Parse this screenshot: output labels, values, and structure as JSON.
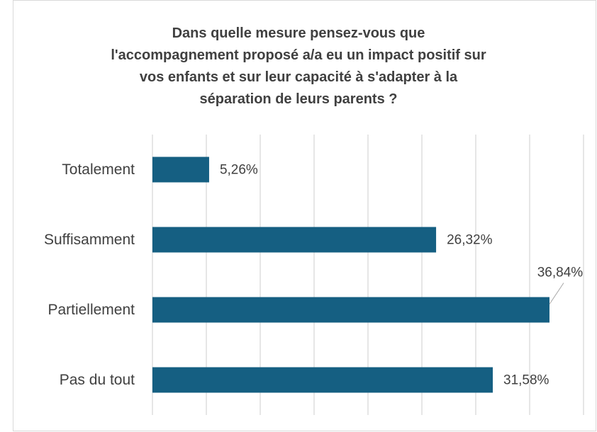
{
  "chart_data": {
    "type": "barh",
    "title": "Dans quelle mesure pensez-vous que l'accompagnement proposé a/a eu un impact positif sur vos enfants et sur leur capacité à s'adapter à la séparation de leurs parents ?",
    "categories": [
      "Totalement",
      "Suffisamment",
      "Partiellement",
      "Pas du tout"
    ],
    "values": [
      5.26,
      26.32,
      36.84,
      31.58
    ],
    "value_labels": [
      "5,26%",
      "26,32%",
      "36,84%",
      "31,58%"
    ],
    "color": "#155f82",
    "xlim": [
      0,
      40
    ],
    "xticks": [
      0,
      5,
      10,
      15,
      20,
      25,
      30,
      35,
      40
    ],
    "grid": true
  }
}
